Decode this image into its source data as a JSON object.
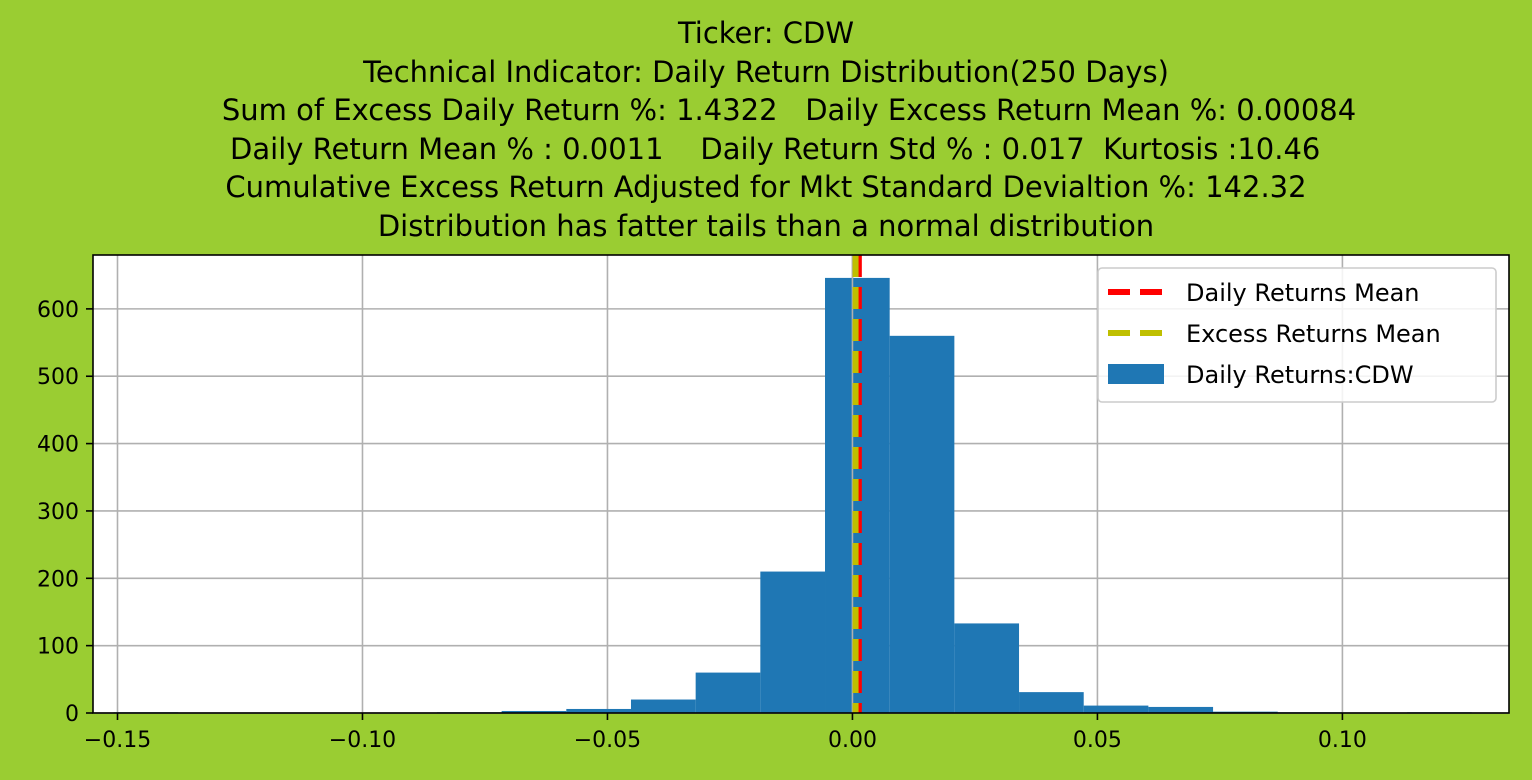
{
  "figure": {
    "background": "#9ACD32"
  },
  "title_lines": [
    "Ticker: CDW",
    "Technical Indicator: Daily Return Distribution(250 Days)",
    "     Sum of Excess Daily Return %: 1.4322   Daily Excess Return Mean %: 0.00084",
    "  Daily Return Mean % : 0.0011    Daily Return Std % : 0.017  Kurtosis :10.46",
    "Cumulative Excess Return Adjusted for Mkt Standard Devialtion %: 142.32",
    "Distribution has fatter tails than a normal distribution"
  ],
  "chart_data": {
    "type": "histogram",
    "title": "Ticker: CDW | Technical Indicator: Daily Return Distribution(250 Days)",
    "xlabel": "",
    "ylabel": "",
    "xlim": [
      -0.155,
      0.134
    ],
    "ylim": [
      0,
      680
    ],
    "grid": true,
    "xticks": [
      -0.15,
      -0.1,
      -0.05,
      0.0,
      0.05,
      0.1
    ],
    "xtick_labels": [
      "−0.15",
      "−0.10",
      "−0.05",
      "0.00",
      "0.05",
      "0.10"
    ],
    "yticks": [
      0,
      100,
      200,
      300,
      400,
      500,
      600
    ],
    "ytick_labels": [
      "0",
      "100",
      "200",
      "300",
      "400",
      "500",
      "600"
    ],
    "histogram": {
      "name": "Daily Returns:CDW",
      "color": "#1f77b4",
      "bin_edges": [
        -0.1508,
        -0.1376,
        -0.1244,
        -0.1112,
        -0.098,
        -0.0848,
        -0.0716,
        -0.0584,
        -0.0452,
        -0.032,
        -0.0188,
        -0.0056,
        0.0076,
        0.0208,
        0.034,
        0.0472,
        0.0604,
        0.0736,
        0.0868,
        0.1,
        0.1132,
        0.1264
      ],
      "counts": [
        1,
        0,
        0,
        0,
        0,
        1,
        3,
        6,
        20,
        60,
        210,
        646,
        560,
        133,
        31,
        11,
        9,
        2,
        1,
        0,
        1
      ]
    },
    "mean_lines": [
      {
        "name": "Daily Returns Mean",
        "x": 0.0011,
        "color": "#ff0000",
        "style": "dashed"
      },
      {
        "name": "Excess Returns Mean",
        "x": 0.00084,
        "color": "#bfbf00",
        "style": "dashed"
      }
    ],
    "legend": {
      "position": "top-right",
      "entries": [
        {
          "label": "Daily Returns Mean",
          "color": "#ff0000",
          "kind": "dashed-line"
        },
        {
          "label": "Excess Returns Mean",
          "color": "#bfbf00",
          "kind": "dashed-line"
        },
        {
          "label": "Daily Returns:CDW",
          "color": "#1f77b4",
          "kind": "patch"
        }
      ]
    }
  }
}
